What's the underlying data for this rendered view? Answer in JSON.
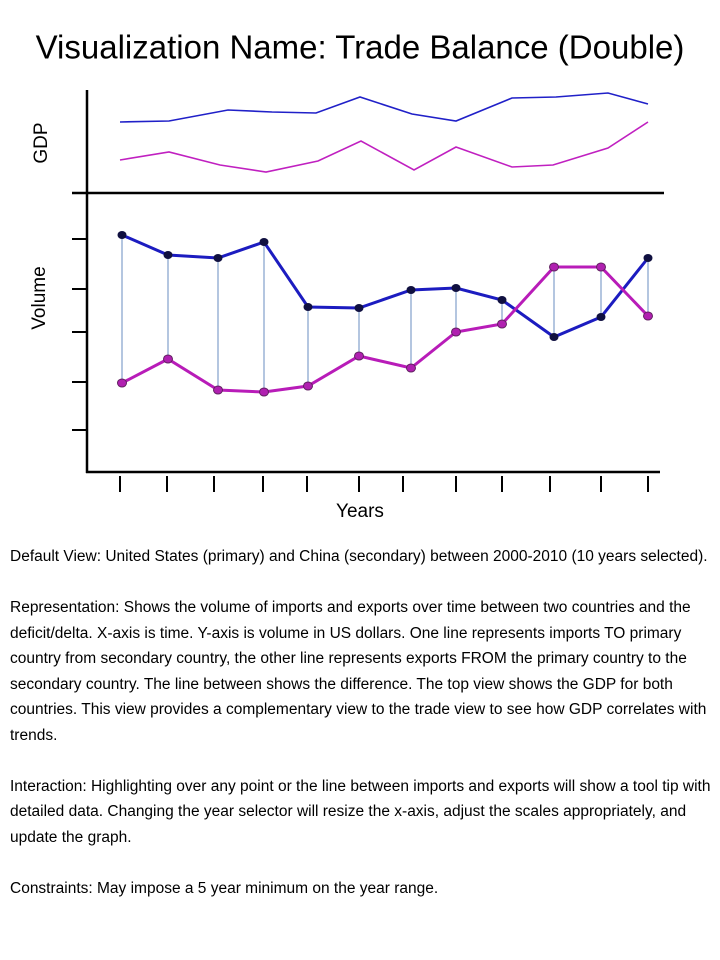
{
  "title": "Visualization Name: Trade Balance (Double)",
  "chart": {
    "top_label": "GDP",
    "bottom_label": "Volume",
    "x_label": "Years"
  },
  "description": [
    "Default View: United States (primary) and China (secondary) between 2000-2010 (10 years selected).",
    "Representation: Shows the volume of imports and exports over time between two countries and the deficit/delta. X-axis is time. Y-axis is volume in US dollars. One line represents imports TO primary country from secondary country, the other line represents exports FROM the primary country to the secondary country. The line between shows the difference. The top view shows the GDP for both countries. This view provides a complementary view to the trade view to see how GDP correlates with trends.",
    "Interaction: Highlighting over any point or the line between imports and exports will show a tool tip with detailed data. Changing the year selector will resize the x-axis, adjust the scales appropriately, and update the graph.",
    "Constraints: May impose a 5 year minimum on the year range."
  ]
}
